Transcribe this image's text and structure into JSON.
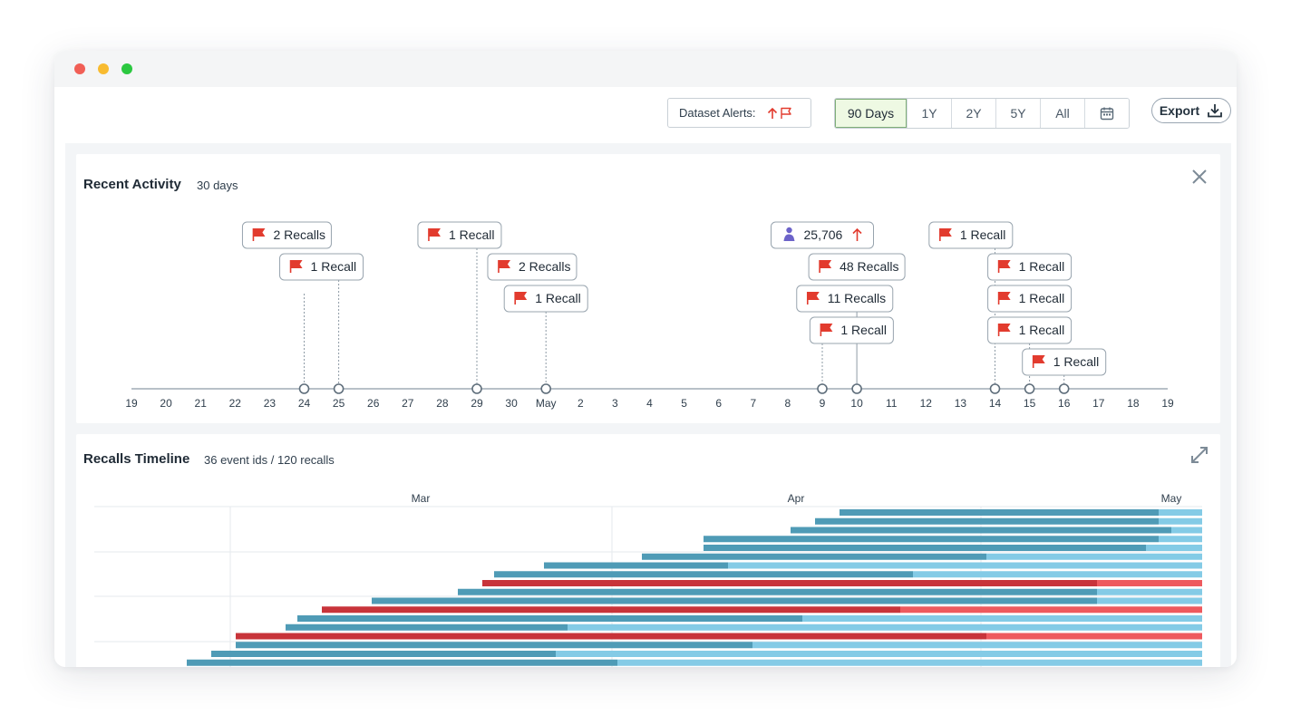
{
  "toolbar": {
    "alerts_label": "Dataset Alerts:",
    "ranges": [
      "90 Days",
      "1Y",
      "2Y",
      "5Y",
      "All"
    ],
    "active_range": "90 Days",
    "export_label": "Export"
  },
  "colors": {
    "flag": "#e23b2e",
    "axis": "#8e9ba6",
    "bar_dark_blue": "#4f9bb6",
    "bar_light_blue": "#84cbe6",
    "bar_dark_red": "#c8343a",
    "bar_light_red": "#ee5a5e",
    "user_icon": "#6c63c9"
  },
  "activity": {
    "title": "Recent Activity",
    "subtitle": "30 days",
    "axis_ticks": [
      "19",
      "20",
      "21",
      "22",
      "23",
      "24",
      "25",
      "26",
      "27",
      "28",
      "29",
      "30",
      "May",
      "2",
      "3",
      "4",
      "5",
      "6",
      "7",
      "8",
      "9",
      "10",
      "11",
      "12",
      "13",
      "14",
      "15",
      "16",
      "17",
      "18",
      "19"
    ],
    "events": [
      {
        "tick": 5,
        "labels": [
          "2 Recalls"
        ]
      },
      {
        "tick": 6,
        "labels": [
          "1 Recall"
        ]
      },
      {
        "tick": 10,
        "labels": [
          "1 Recall"
        ]
      },
      {
        "tick": 12,
        "labels": [
          "2 Recalls",
          "1 Recall"
        ]
      },
      {
        "tick": 20,
        "labels": [
          "1 Recall"
        ]
      },
      {
        "tick": 21,
        "labels": [
          "48 Recalls",
          "11 Recalls"
        ]
      },
      {
        "tick": 21,
        "labels": [
          "25,706"
        ],
        "icon": "user-icon",
        "trend": "up-arrow-icon"
      },
      {
        "tick": 25,
        "labels": [
          "1 Recall"
        ]
      },
      {
        "tick": 26,
        "labels": [
          "1 Recall",
          "1 Recall",
          "1 Recall"
        ]
      },
      {
        "tick": 27,
        "labels": [
          "1 Recall"
        ]
      }
    ]
  },
  "timeline": {
    "title": "Recalls Timeline",
    "subtitle": "36 event ids / 120 recalls",
    "months": [
      "Mar",
      "Apr",
      "May"
    ]
  }
}
